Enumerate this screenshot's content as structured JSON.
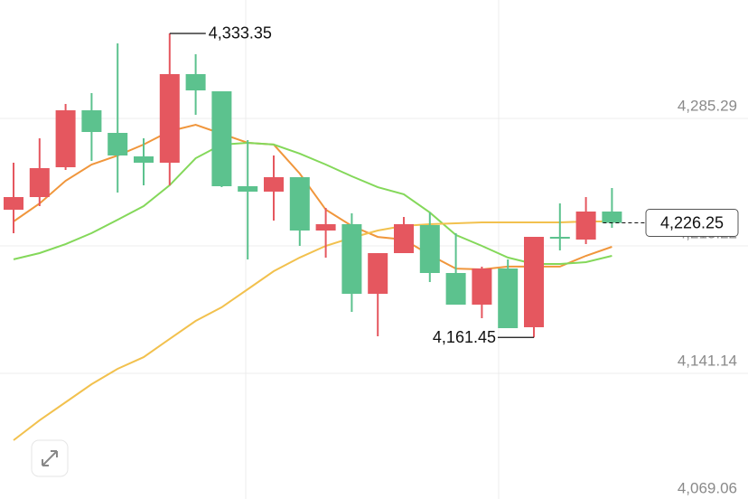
{
  "chart_data": {
    "type": "candlestick",
    "open": [
      4233.66,
      4240.82,
      4257.69,
      4289.89,
      4277.11,
      4263.82,
      4260.24,
      4310.34,
      4300.63,
      4246.95,
      4243.89,
      4252.06,
      4221.9,
      4225.48,
      4186.12,
      4209.12,
      4224.97,
      4197.88,
      4179.99,
      4200.43,
      4167.21,
      4218.33,
      4216.79,
      4232.64
    ],
    "high": [
      4260.24,
      4274.05,
      4293.47,
      4299.61,
      4327.72,
      4274.05,
      4333.35,
      4321.59,
      4300.63,
      4273.02,
      4264.33,
      4252.06,
      4234.68,
      4231.62,
      4209.12,
      4229.57,
      4232.13,
      4220.37,
      4201.46,
      4205.55,
      4218.33,
      4237.24,
      4240.82,
      4245.93
    ],
    "low": [
      4220.37,
      4235.71,
      4256.15,
      4261.27,
      4243.37,
      4247.46,
      4247.46,
      4287.34,
      4246.44,
      4205.55,
      4227.53,
      4213.21,
      4206.57,
      4175.9,
      4162.09,
      4209.12,
      4192.77,
      4179.99,
      4172.32,
      4166.69,
      4161.45,
      4210.66,
      4214.24,
      4223.44
    ],
    "close": [
      4240.82,
      4257.18,
      4289.89,
      4277.62,
      4264.33,
      4260.24,
      4310.34,
      4301.14,
      4246.95,
      4243.89,
      4252.06,
      4221.9,
      4225.48,
      4186.12,
      4209.12,
      4225.48,
      4197.88,
      4179.99,
      4200.43,
      4166.69,
      4218.33,
      4217.3,
      4232.64,
      4226.25
    ],
    "up_color": "#e5575f",
    "down_color": "#5cc28e",
    "series": [
      {
        "color": "#f0963c",
        "values": [
          4227.0,
          4237.2,
          4250.0,
          4259.2,
          4264.3,
          4270.5,
          4278.1,
          4281.7,
          4276.6,
          4271.5,
          4270.5,
          4254.1,
          4233.7,
          4224.5,
          4218.3,
          4216.8,
          4208.1,
          4200.4,
          4199.9,
          4201.5,
          4201.5,
          4201.5,
          4207.6,
          4212.7
        ]
      },
      {
        "color": "#84d85a",
        "values": [
          4205.6,
          4209.1,
          4214.2,
          4220.4,
          4228.0,
          4235.7,
          4247.5,
          4262.8,
          4270.5,
          4271.5,
          4270.5,
          4265.4,
          4259.2,
          4252.6,
          4246.4,
          4242.4,
          4232.1,
          4219.4,
          4213.2,
          4206.6,
          4203.0,
          4203.0,
          4204.0,
          4207.6
        ]
      },
      {
        "color": "#f2c14e",
        "values": [
          4103.3,
          4114.6,
          4124.8,
          4135.0,
          4143.7,
          4150.3,
          4160.6,
          4170.8,
          4178.5,
          4188.7,
          4198.9,
          4206.6,
          4213.2,
          4217.8,
          4221.9,
          4224.5,
          4225.5,
          4226.0,
          4226.5,
          4226.5,
          4226.5,
          4226.5,
          4227.0,
          4227.0
        ]
      }
    ],
    "ylim": [
      4070.08,
      4352.26
    ],
    "yticks": [
      {
        "value": 4285.29,
        "label": "4,285.29"
      },
      {
        "value": 4213.22,
        "label": "4,213.22"
      },
      {
        "value": 4141.14,
        "label": "4,141.14"
      },
      {
        "value": 4069.06,
        "label": "4,069.06"
      }
    ],
    "grid": true,
    "high_label": "4,333.35",
    "low_label": "4,161.45",
    "last_label": "4,226.25"
  }
}
